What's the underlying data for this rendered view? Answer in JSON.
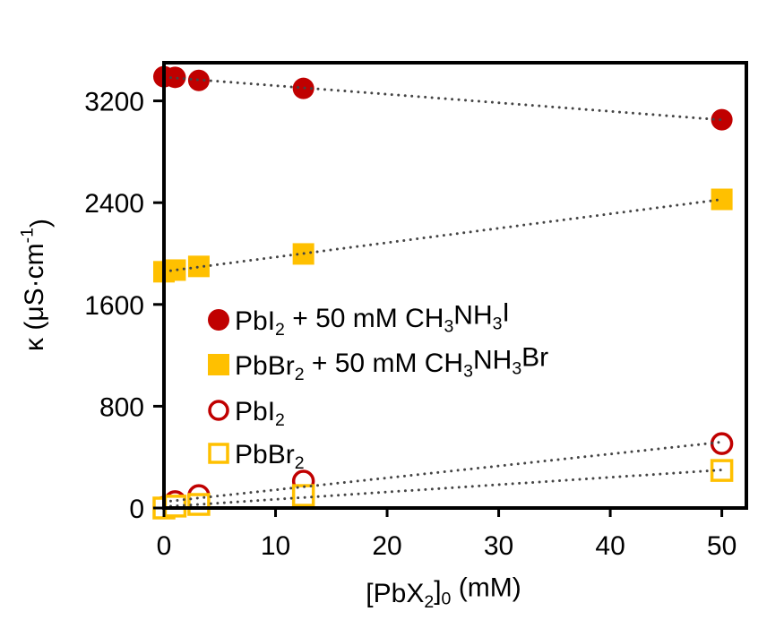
{
  "chart_data": {
    "type": "scatter",
    "title": "",
    "xlabel": {
      "parts": [
        [
          "[PbX",
          ""
        ],
        [
          "2",
          "sub"
        ],
        [
          "]",
          ""
        ],
        [
          "0",
          "sub"
        ],
        [
          " (mM)",
          ""
        ]
      ]
    },
    "ylabel": {
      "parts": [
        [
          "κ (μS·cm",
          ""
        ],
        [
          "-1",
          "sup"
        ],
        [
          ")",
          ""
        ]
      ]
    },
    "xlim": [
      0,
      52.2
    ],
    "ylim": [
      0,
      3500
    ],
    "xticks": [
      0,
      10,
      20,
      30,
      40,
      50
    ],
    "yticks": [
      0,
      800,
      1600,
      2400,
      3200
    ],
    "grid": false,
    "legend_position": "center-left",
    "series": [
      {
        "name": "PbI2 + 50 mM CH3NH3I",
        "label_parts": [
          [
            "PbI",
            ""
          ],
          [
            "2",
            "sub"
          ],
          [
            " + 50 mM CH",
            ""
          ],
          [
            "3",
            "sub"
          ],
          [
            "NH",
            ""
          ],
          [
            "3",
            "sub"
          ],
          [
            "I",
            ""
          ]
        ],
        "marker": "circle",
        "filled": true,
        "color": "#C00000",
        "x": [
          0,
          1,
          3.125,
          12.5,
          50
        ],
        "y": [
          3390,
          3385,
          3361,
          3298,
          3052
        ],
        "trendline": true
      },
      {
        "name": "PbBr2 + 50 mM CH3NH3Br",
        "label_parts": [
          [
            "PbBr",
            ""
          ],
          [
            "2",
            "sub"
          ],
          [
            " + 50 mM CH",
            ""
          ],
          [
            "3",
            "sub"
          ],
          [
            "NH",
            ""
          ],
          [
            "3",
            "sub"
          ],
          [
            "Br",
            ""
          ]
        ],
        "marker": "square",
        "filled": true,
        "color": "#FFC000",
        "x": [
          0,
          1,
          3.125,
          12.5,
          50
        ],
        "y": [
          1857,
          1870,
          1899,
          1997,
          2426
        ],
        "trendline": true
      },
      {
        "name": "PbI2",
        "label_parts": [
          [
            "PbI",
            ""
          ],
          [
            "2",
            "sub"
          ]
        ],
        "marker": "circle",
        "filled": false,
        "color": "#C00000",
        "x": [
          0,
          1,
          3.125,
          12.5,
          50
        ],
        "y": [
          5,
          50,
          98,
          211,
          506
        ],
        "trendline": true
      },
      {
        "name": "PbBr2",
        "label_parts": [
          [
            "PbBr",
            ""
          ],
          [
            "2",
            "sub"
          ]
        ],
        "marker": "square",
        "filled": false,
        "color": "#FFC000",
        "x": [
          0,
          1,
          3.125,
          12.5,
          50
        ],
        "y": [
          0,
          15,
          28,
          98,
          295
        ],
        "trendline": true
      }
    ]
  }
}
